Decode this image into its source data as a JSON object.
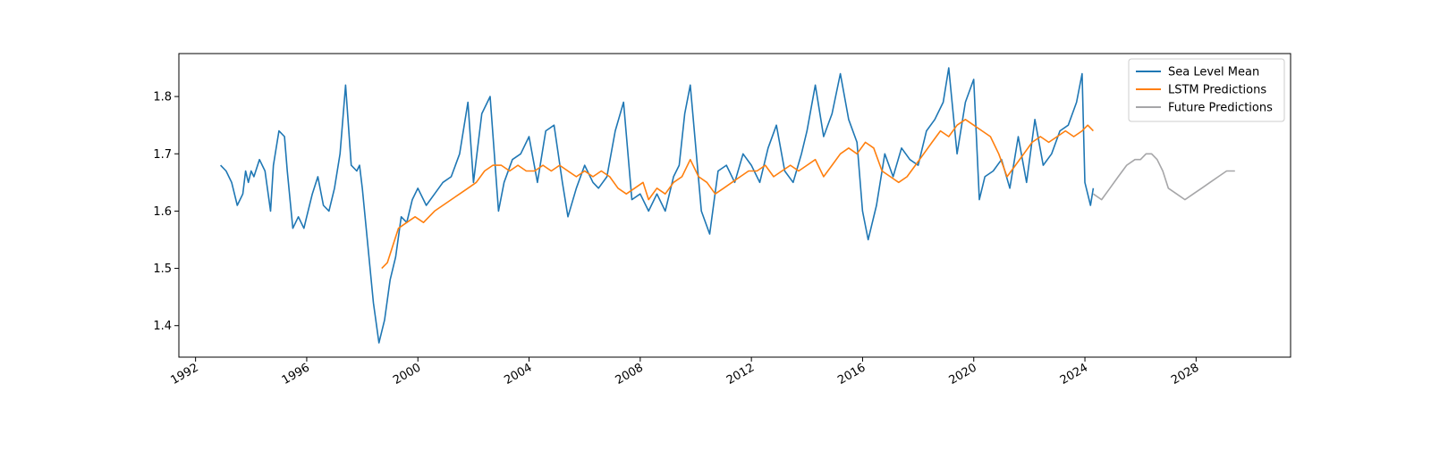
{
  "chart_data": {
    "type": "line",
    "title": "",
    "xlabel": "",
    "ylabel": "",
    "xlim": [
      1991.4,
      2031.4
    ],
    "ylim": [
      1.345,
      1.875
    ],
    "x_ticks": [
      1992,
      1996,
      2000,
      2004,
      2008,
      2012,
      2016,
      2020,
      2024,
      2028
    ],
    "x_tick_labels": [
      "1992",
      "1996",
      "2000",
      "2004",
      "2008",
      "2012",
      "2016",
      "2020",
      "2024",
      "2028"
    ],
    "y_ticks": [
      1.4,
      1.5,
      1.6,
      1.7,
      1.8
    ],
    "y_tick_labels": [
      "1.4",
      "1.5",
      "1.6",
      "1.7",
      "1.8"
    ],
    "grid": false,
    "legend": "top-right",
    "series": [
      {
        "name": "Sea Level Mean",
        "color": "#1f77b4",
        "x": [
          1992.9,
          1993.1,
          1993.3,
          1993.5,
          1993.7,
          1993.8,
          1993.9,
          1994.0,
          1994.1,
          1994.3,
          1994.5,
          1994.7,
          1994.8,
          1994.9,
          1995.0,
          1995.2,
          1995.3,
          1995.5,
          1995.7,
          1995.9,
          1996.0,
          1996.2,
          1996.4,
          1996.6,
          1996.8,
          1997.0,
          1997.2,
          1997.4,
          1997.6,
          1997.8,
          1997.9,
          1998.0,
          1998.2,
          1998.4,
          1998.6,
          1998.8,
          1999.0,
          1999.2,
          1999.4,
          1999.6,
          1999.8,
          2000.0,
          2000.3,
          2000.6,
          2000.9,
          2001.2,
          2001.5,
          2001.8,
          2002.0,
          2002.3,
          2002.6,
          2002.9,
          2003.1,
          2003.4,
          2003.7,
          2004.0,
          2004.3,
          2004.6,
          2004.9,
          2005.2,
          2005.4,
          2005.7,
          2006.0,
          2006.3,
          2006.5,
          2006.8,
          2007.1,
          2007.4,
          2007.7,
          2008.0,
          2008.3,
          2008.6,
          2008.9,
          2009.2,
          2009.4,
          2009.6,
          2009.8,
          2010.0,
          2010.2,
          2010.5,
          2010.8,
          2011.1,
          2011.4,
          2011.7,
          2012.0,
          2012.3,
          2012.6,
          2012.9,
          2013.2,
          2013.5,
          2013.8,
          2014.0,
          2014.3,
          2014.6,
          2014.9,
          2015.2,
          2015.5,
          2015.8,
          2016.0,
          2016.2,
          2016.5,
          2016.8,
          2017.1,
          2017.4,
          2017.7,
          2018.0,
          2018.3,
          2018.6,
          2018.9,
          2019.1,
          2019.4,
          2019.7,
          2020.0,
          2020.2,
          2020.4,
          2020.7,
          2021.0,
          2021.3,
          2021.6,
          2021.9,
          2022.2,
          2022.5,
          2022.8,
          2023.1,
          2023.4,
          2023.7,
          2023.9,
          2024.0,
          2024.2,
          2024.3
        ],
        "y": [
          1.68,
          1.67,
          1.65,
          1.61,
          1.63,
          1.67,
          1.65,
          1.67,
          1.66,
          1.69,
          1.67,
          1.6,
          1.68,
          1.71,
          1.74,
          1.73,
          1.67,
          1.57,
          1.59,
          1.57,
          1.59,
          1.63,
          1.66,
          1.61,
          1.6,
          1.64,
          1.7,
          1.82,
          1.68,
          1.67,
          1.68,
          1.64,
          1.54,
          1.44,
          1.37,
          1.41,
          1.48,
          1.52,
          1.59,
          1.58,
          1.62,
          1.64,
          1.61,
          1.63,
          1.65,
          1.66,
          1.7,
          1.79,
          1.65,
          1.77,
          1.8,
          1.6,
          1.65,
          1.69,
          1.7,
          1.73,
          1.65,
          1.74,
          1.75,
          1.65,
          1.59,
          1.64,
          1.68,
          1.65,
          1.64,
          1.66,
          1.74,
          1.79,
          1.62,
          1.63,
          1.6,
          1.63,
          1.6,
          1.66,
          1.68,
          1.77,
          1.82,
          1.71,
          1.6,
          1.56,
          1.67,
          1.68,
          1.65,
          1.7,
          1.68,
          1.65,
          1.71,
          1.75,
          1.67,
          1.65,
          1.7,
          1.74,
          1.82,
          1.73,
          1.77,
          1.84,
          1.76,
          1.72,
          1.6,
          1.55,
          1.61,
          1.7,
          1.66,
          1.71,
          1.69,
          1.68,
          1.74,
          1.76,
          1.79,
          1.85,
          1.7,
          1.79,
          1.83,
          1.62,
          1.66,
          1.67,
          1.69,
          1.64,
          1.73,
          1.65,
          1.76,
          1.68,
          1.7,
          1.74,
          1.75,
          1.79,
          1.84,
          1.65,
          1.61,
          1.64
        ]
      },
      {
        "name": "LSTM Predictions",
        "color": "#ff7f0e",
        "x": [
          1998.7,
          1998.9,
          1999.1,
          1999.3,
          1999.6,
          1999.9,
          2000.2,
          2000.6,
          2000.9,
          2001.2,
          2001.5,
          2001.8,
          2002.1,
          2002.4,
          2002.7,
          2003.0,
          2003.3,
          2003.6,
          2003.9,
          2004.2,
          2004.5,
          2004.8,
          2005.1,
          2005.4,
          2005.7,
          2006.0,
          2006.3,
          2006.6,
          2006.9,
          2007.2,
          2007.5,
          2007.8,
          2008.1,
          2008.3,
          2008.6,
          2008.9,
          2009.2,
          2009.5,
          2009.8,
          2010.1,
          2010.4,
          2010.7,
          2011.0,
          2011.3,
          2011.6,
          2011.9,
          2012.2,
          2012.5,
          2012.8,
          2013.1,
          2013.4,
          2013.7,
          2014.0,
          2014.3,
          2014.6,
          2014.9,
          2015.2,
          2015.5,
          2015.8,
          2016.1,
          2016.4,
          2016.7,
          2017.0,
          2017.3,
          2017.6,
          2017.9,
          2018.2,
          2018.5,
          2018.8,
          2019.1,
          2019.4,
          2019.7,
          2020.0,
          2020.3,
          2020.6,
          2020.9,
          2021.2,
          2021.5,
          2021.8,
          2022.1,
          2022.4,
          2022.7,
          2023.0,
          2023.3,
          2023.6,
          2023.9,
          2024.1,
          2024.3
        ],
        "y": [
          1.5,
          1.51,
          1.54,
          1.57,
          1.58,
          1.59,
          1.58,
          1.6,
          1.61,
          1.62,
          1.63,
          1.64,
          1.65,
          1.67,
          1.68,
          1.68,
          1.67,
          1.68,
          1.67,
          1.67,
          1.68,
          1.67,
          1.68,
          1.67,
          1.66,
          1.67,
          1.66,
          1.67,
          1.66,
          1.64,
          1.63,
          1.64,
          1.65,
          1.62,
          1.64,
          1.63,
          1.65,
          1.66,
          1.69,
          1.66,
          1.65,
          1.63,
          1.64,
          1.65,
          1.66,
          1.67,
          1.67,
          1.68,
          1.66,
          1.67,
          1.68,
          1.67,
          1.68,
          1.69,
          1.66,
          1.68,
          1.7,
          1.71,
          1.7,
          1.72,
          1.71,
          1.67,
          1.66,
          1.65,
          1.66,
          1.68,
          1.7,
          1.72,
          1.74,
          1.73,
          1.75,
          1.76,
          1.75,
          1.74,
          1.73,
          1.7,
          1.66,
          1.68,
          1.7,
          1.72,
          1.73,
          1.72,
          1.73,
          1.74,
          1.73,
          1.74,
          1.75,
          1.74
        ]
      },
      {
        "name": "Future Predictions",
        "color": "#a6a6a8",
        "x": [
          2024.3,
          2024.6,
          2024.9,
          2025.2,
          2025.5,
          2025.8,
          2026.0,
          2026.2,
          2026.4,
          2026.6,
          2026.8,
          2027.0,
          2027.3,
          2027.6,
          2027.9,
          2028.2,
          2028.5,
          2028.8,
          2029.1,
          2029.4
        ],
        "y": [
          1.63,
          1.62,
          1.64,
          1.66,
          1.68,
          1.69,
          1.69,
          1.7,
          1.7,
          1.69,
          1.67,
          1.64,
          1.63,
          1.62,
          1.63,
          1.64,
          1.65,
          1.66,
          1.67,
          1.67
        ]
      }
    ]
  }
}
